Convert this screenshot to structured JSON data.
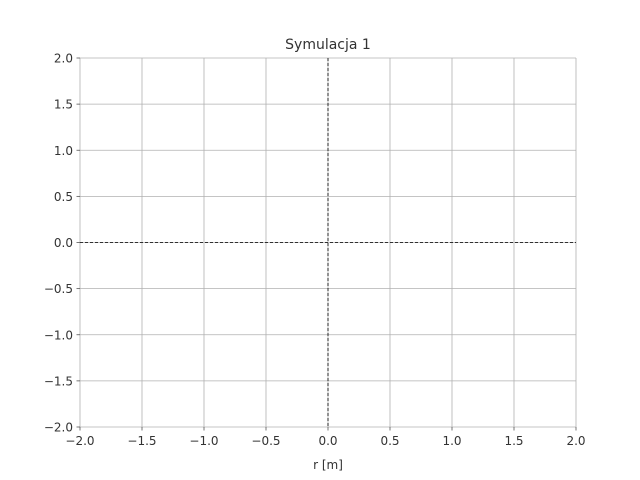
{
  "chart_data": {
    "type": "line",
    "title": "Symulacja 1",
    "xlabel": "r [m]",
    "ylabel": "",
    "xlim": [
      -2.0,
      2.0
    ],
    "ylim": [
      -2.0,
      2.0
    ],
    "x_ticks": [
      -2.0,
      -1.5,
      -1.0,
      -0.5,
      0.0,
      0.5,
      1.0,
      1.5,
      2.0
    ],
    "y_ticks": [
      -2.0,
      -1.5,
      -1.0,
      -0.5,
      0.0,
      0.5,
      1.0,
      1.5,
      2.0
    ],
    "x_tick_labels": [
      "−2.0",
      "−1.5",
      "−1.0",
      "−0.5",
      "0.0",
      "0.5",
      "1.0",
      "1.5",
      "2.0"
    ],
    "y_tick_labels": [
      "−2.0",
      "−1.5",
      "−1.0",
      "−0.5",
      "0.0",
      "0.5",
      "1.0",
      "1.5",
      "2.0"
    ],
    "grid": true,
    "reference_lines": [
      {
        "orientation": "horizontal",
        "value": 0.0,
        "style": "dashed"
      },
      {
        "orientation": "vertical",
        "value": 0.0,
        "style": "dashed"
      }
    ],
    "series": [],
    "colors": {
      "grid": "#b0b0b0",
      "reference": "#000000",
      "text": "#333333"
    }
  }
}
